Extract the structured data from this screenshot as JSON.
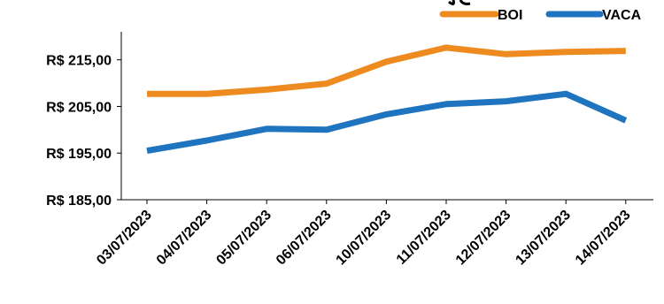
{
  "chart_data": {
    "type": "line",
    "categories": [
      "03/07/2023",
      "04/07/2023",
      "05/07/2023",
      "06/07/2023",
      "10/07/2023",
      "11/07/2023",
      "12/07/2023",
      "13/07/2023",
      "14/07/2023"
    ],
    "series": [
      {
        "name": "BOI",
        "color": "#ED8B21",
        "values": [
          207.7,
          207.7,
          208.6,
          209.9,
          214.6,
          217.6,
          216.2,
          216.7,
          216.9
        ]
      },
      {
        "name": "VACA",
        "color": "#1F74BF",
        "values": [
          195.5,
          197.7,
          200.2,
          200.0,
          203.3,
          205.5,
          206.1,
          207.7,
          202.0
        ]
      }
    ],
    "y_ticks": [
      "R$ 185,00",
      "R$ 195,00",
      "R$ 205,00",
      "R$ 215,00"
    ],
    "y_tick_values": [
      185,
      195,
      205,
      215
    ],
    "ylim": [
      185,
      221
    ],
    "grid": false,
    "legend_position": "top-right"
  }
}
